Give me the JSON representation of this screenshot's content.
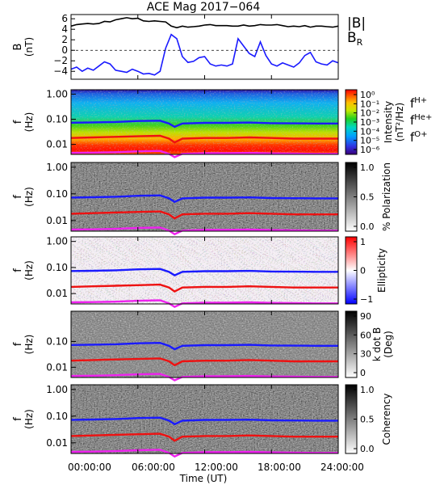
{
  "title": "ACE Mag 2017−064",
  "x_axis": {
    "label": "Time (UT)",
    "ticks": [
      "00:00:00",
      "06:00:00",
      "12:00:00",
      "18:00:00",
      "24:00:00"
    ],
    "range_hours": [
      0,
      24
    ]
  },
  "panels": [
    {
      "id": "b-field",
      "ylabel_lines": [
        "B",
        "(nT)"
      ],
      "yticks": [
        "6",
        "4",
        "2",
        "0",
        "−2",
        "−4"
      ],
      "legend": [
        {
          "text": "|B|",
          "sub": "",
          "color": "#000000"
        },
        {
          "text": "B",
          "sub": "R",
          "color": "#1a1aff"
        }
      ]
    },
    {
      "id": "intensity",
      "ylabel_lines": [
        "f",
        "(Hz)"
      ],
      "yticks": [
        "1.00",
        "0.10",
        "0.01"
      ],
      "colorbar": {
        "type": "rainbow",
        "ticks": [
          "10⁰",
          "10⁻¹",
          "10⁻²",
          "10⁻³",
          "10⁻⁴",
          "10⁻⁵",
          "10⁻⁶"
        ],
        "label_lines": [
          "Intensity",
          "(nT²/Hz)"
        ]
      },
      "legend": [
        {
          "text": "f",
          "sub": "H+",
          "color": "#2222cc"
        },
        {
          "text": "f",
          "sub": "He+",
          "color": "#dd1111"
        },
        {
          "text": "f",
          "sub": "O+",
          "color": "#dd22dd"
        }
      ]
    },
    {
      "id": "polarization",
      "ylabel_lines": [
        "f",
        "(Hz)"
      ],
      "yticks": [
        "1.00",
        "0.10",
        "0.01"
      ],
      "colorbar": {
        "type": "gray",
        "ticks": [
          "1.0",
          "0.5",
          "0.0"
        ],
        "label_lines": [
          "% Polarization"
        ]
      }
    },
    {
      "id": "ellipticity",
      "ylabel_lines": [
        "f",
        "(Hz)"
      ],
      "yticks": [
        "1.00",
        "0.10",
        "0.01"
      ],
      "colorbar": {
        "type": "bwr",
        "ticks": [
          "1",
          "0",
          "−1"
        ],
        "label_lines": [
          "Ellipticity"
        ]
      }
    },
    {
      "id": "kdotb",
      "ylabel_lines": [
        "f",
        "(Hz)"
      ],
      "yticks": [
        "0.10",
        "0.01"
      ],
      "colorbar": {
        "type": "gray",
        "ticks": [
          "90",
          "60",
          "30",
          "0"
        ],
        "label_lines": [
          "k dot B",
          "(Deg)"
        ]
      }
    },
    {
      "id": "coherency",
      "ylabel_lines": [
        "f",
        "(Hz)"
      ],
      "yticks": [
        "1.00",
        "0.10",
        "0.01"
      ],
      "colorbar": {
        "type": "gray",
        "ticks": [
          "1.0",
          "0.5",
          "0.0"
        ],
        "label_lines": [
          "Coherency"
        ]
      }
    }
  ],
  "chart_data": {
    "type": "line",
    "title": "ACE Mag 2017−064",
    "xlabel": "Time (UT)",
    "x_ticks": [
      "00:00:00",
      "06:00:00",
      "12:00:00",
      "18:00:00",
      "24:00:00"
    ],
    "b_field": {
      "ylabel": "B (nT)",
      "ylim": [
        -5.5,
        6.8
      ],
      "x_hours": [
        0,
        0.5,
        1,
        1.5,
        2,
        2.5,
        3,
        3.5,
        4,
        4.5,
        5,
        5.5,
        6,
        6.5,
        7,
        7.5,
        8,
        8.5,
        9,
        9.5,
        10,
        10.5,
        11,
        11.5,
        12,
        12.5,
        13,
        13.5,
        14,
        14.5,
        15,
        15.5,
        16,
        16.5,
        17,
        17.5,
        18,
        18.5,
        19,
        19.5,
        20,
        20.5,
        21,
        21.5,
        22,
        22.5,
        23,
        23.5,
        24
      ],
      "series": [
        {
          "name": "|B|",
          "color": "#000000",
          "values": [
            4.6,
            4.9,
            5.0,
            5.1,
            5.0,
            5.1,
            5.5,
            5.4,
            5.8,
            6.0,
            6.2,
            6.0,
            6.1,
            5.6,
            5.5,
            5.6,
            5.5,
            5.4,
            4.6,
            4.3,
            4.6,
            4.4,
            4.5,
            4.6,
            4.8,
            4.9,
            4.7,
            4.7,
            4.7,
            4.6,
            4.6,
            4.8,
            4.6,
            4.7,
            4.9,
            4.8,
            4.8,
            4.9,
            4.7,
            4.5,
            4.6,
            4.5,
            4.7,
            4.4,
            4.6,
            4.6,
            4.5,
            4.4,
            4.6
          ]
        },
        {
          "name": "B_R",
          "color": "#1a1aff",
          "values": [
            -3.6,
            -3.2,
            -4.0,
            -3.4,
            -3.8,
            -3.0,
            -2.2,
            -2.6,
            -3.8,
            -4.0,
            -4.2,
            -3.6,
            -4.0,
            -4.5,
            -4.4,
            -4.7,
            -4.0,
            0.4,
            3.0,
            2.2,
            -1.2,
            -2.3,
            -2.1,
            -1.4,
            -1.2,
            -2.6,
            -3.0,
            -2.8,
            -3.0,
            -2.6,
            2.2,
            0.8,
            -0.6,
            -1.2,
            1.6,
            -1.0,
            -2.6,
            -3.0,
            -2.4,
            -2.8,
            -3.2,
            -2.4,
            -1.0,
            -0.4,
            -2.2,
            -2.6,
            -2.8,
            -2.0,
            -2.4
          ]
        }
      ]
    },
    "gyrofrequencies": {
      "ylabel": "f (Hz)",
      "yscale": "log",
      "ylim": [
        0.004,
        1.5
      ],
      "x_hours": [
        0,
        2,
        4,
        6,
        8,
        8.8,
        9.3,
        10,
        12,
        14,
        16,
        18,
        20,
        22,
        24
      ],
      "series": [
        {
          "name": "f_H+",
          "color": "#1a1aff",
          "values": [
            0.073,
            0.075,
            0.078,
            0.085,
            0.088,
            0.068,
            0.05,
            0.068,
            0.072,
            0.072,
            0.074,
            0.07,
            0.069,
            0.068,
            0.068
          ]
        },
        {
          "name": "f_He+",
          "color": "#ee1111",
          "values": [
            0.018,
            0.019,
            0.02,
            0.021,
            0.022,
            0.017,
            0.012,
            0.017,
            0.018,
            0.018,
            0.019,
            0.018,
            0.017,
            0.017,
            0.017
          ]
        },
        {
          "name": "f_O+",
          "color": "#ee22ee",
          "values": [
            0.0046,
            0.0047,
            0.0049,
            0.0053,
            0.0055,
            0.0042,
            0.0031,
            0.0042,
            0.0045,
            0.0045,
            0.0046,
            0.0044,
            0.0043,
            0.0042,
            0.0042
          ]
        }
      ]
    }
  }
}
